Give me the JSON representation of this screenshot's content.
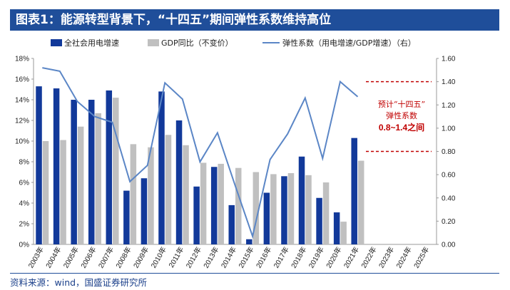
{
  "header": {
    "title": "图表1：能源转型背景下，“十四五”期间弹性系数维持高位"
  },
  "source": "资料来源：wind，国盛证券研究所",
  "colors": {
    "title_bg": "#1f4e9a",
    "elec_bar": "#12399a",
    "gdp_bar": "#c0c0c0",
    "elasticity_line": "#5b86c6",
    "annotation": "#c00000"
  },
  "annotation": {
    "line1": "预计“十四五”",
    "line2": "弹性系数",
    "line3": "0.8~1.4之间",
    "band_values": [
      1.4,
      0.8
    ]
  },
  "chart_data": {
    "type": "bar",
    "categories": [
      "2003年",
      "2004年",
      "2005年",
      "2006年",
      "2007年",
      "2008年",
      "2009年",
      "2010年",
      "2011年",
      "2012年",
      "2013年",
      "2014年",
      "2015年",
      "2016年",
      "2017年",
      "2018年",
      "2019年",
      "2020年",
      "2021年",
      "2022年",
      "2023年",
      "2024年",
      "2025年"
    ],
    "series": [
      {
        "name": "全社会用电增速",
        "type": "bar",
        "axis": "left",
        "values": [
          15.3,
          15.1,
          14.0,
          14.0,
          14.9,
          5.2,
          6.4,
          14.8,
          12.0,
          5.6,
          7.5,
          3.8,
          0.5,
          5.0,
          6.6,
          8.5,
          4.5,
          3.1,
          10.3,
          null,
          null,
          null,
          null
        ]
      },
      {
        "name": "GDP同比（不变价）",
        "type": "bar",
        "axis": "left",
        "values": [
          10.0,
          10.1,
          11.4,
          12.7,
          14.2,
          9.7,
          9.4,
          10.6,
          9.6,
          7.9,
          7.8,
          7.4,
          7.0,
          6.8,
          6.9,
          6.7,
          6.0,
          2.2,
          8.1,
          null,
          null,
          null,
          null
        ]
      },
      {
        "name": "弹性系数（用电增速/GDP增速）（右）",
        "type": "line",
        "axis": "right",
        "values": [
          1.52,
          1.49,
          1.23,
          1.1,
          1.05,
          0.54,
          0.68,
          1.39,
          1.25,
          0.71,
          0.96,
          0.51,
          0.07,
          0.73,
          0.95,
          1.26,
          0.74,
          1.4,
          1.27,
          null,
          null,
          null,
          null
        ]
      }
    ],
    "left_axis": {
      "ticks": [
        "0%",
        "2%",
        "4%",
        "6%",
        "8%",
        "10%",
        "12%",
        "14%",
        "16%",
        "18%"
      ],
      "ylim": [
        0,
        18
      ]
    },
    "right_axis": {
      "ticks": [
        "0.00",
        "0.20",
        "0.40",
        "0.60",
        "0.80",
        "1.00",
        "1.20",
        "1.40",
        "1.60"
      ],
      "ylim": [
        0,
        1.6
      ]
    },
    "legend_position": "top",
    "grid": false
  }
}
